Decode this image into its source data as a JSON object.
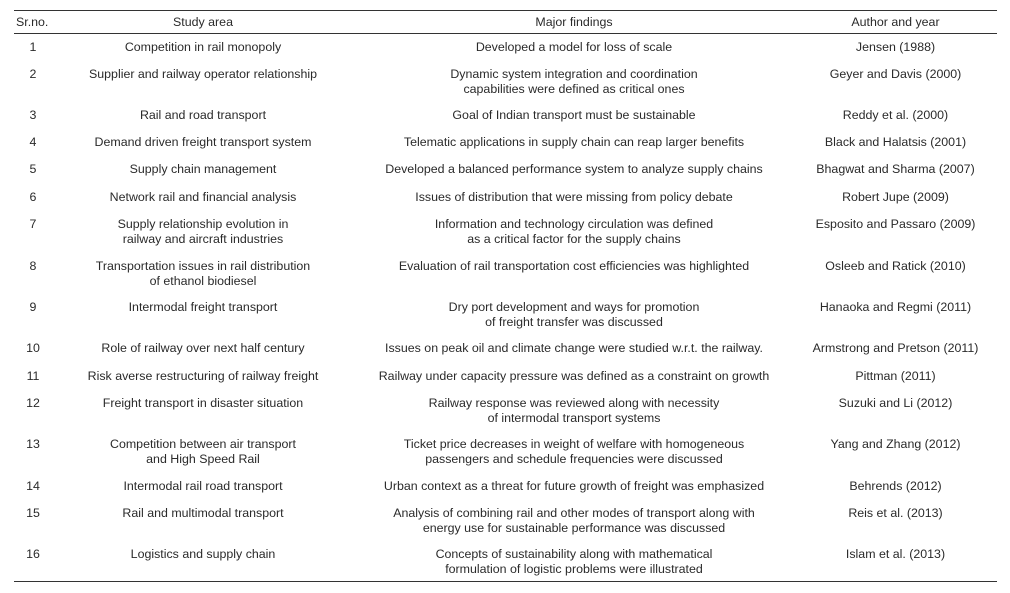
{
  "table": {
    "headers": {
      "sr": "Sr.no.",
      "area": "Study area",
      "findings": "Major findings",
      "author": "Author and year"
    },
    "rows": [
      {
        "sr": "1",
        "area": [
          "Competition in rail monopoly"
        ],
        "findings": [
          "Developed a model for loss of scale"
        ],
        "author": "Jensen (1988)"
      },
      {
        "sr": "2",
        "area": [
          "Supplier and railway operator relationship"
        ],
        "findings": [
          "Dynamic system integration and coordination",
          "capabilities were defined as critical ones"
        ],
        "author": "Geyer and Davis (2000)"
      },
      {
        "sr": "3",
        "area": [
          "Rail and road transport"
        ],
        "findings": [
          "Goal of Indian transport must be sustainable"
        ],
        "author": "Reddy et al. (2000)"
      },
      {
        "sr": "4",
        "area": [
          "Demand driven freight transport system"
        ],
        "findings": [
          "Telematic applications in supply chain can reap larger benefits"
        ],
        "author": "Black and Halatsis (2001)"
      },
      {
        "sr": "5",
        "area": [
          "Supply chain management"
        ],
        "findings": [
          "Developed a balanced performance system to analyze supply chains"
        ],
        "author": "Bhagwat and Sharma (2007)"
      },
      {
        "sr": "6",
        "area": [
          "Network rail and financial analysis"
        ],
        "findings": [
          "Issues of distribution that were missing from policy debate"
        ],
        "author": "Robert Jupe (2009)"
      },
      {
        "sr": "7",
        "area": [
          "Supply relationship evolution in",
          "railway and aircraft industries"
        ],
        "findings": [
          "Information and technology circulation was defined",
          "as a critical factor for the supply chains"
        ],
        "author": "Esposito and Passaro (2009)"
      },
      {
        "sr": "8",
        "area": [
          "Transportation issues in rail distribution",
          "of ethanol biodiesel"
        ],
        "findings": [
          "Evaluation of rail transportation cost efficiencies was highlighted"
        ],
        "author": "Osleeb and Ratick (2010)"
      },
      {
        "sr": "9",
        "area": [
          "Intermodal freight transport"
        ],
        "findings": [
          "Dry port development and ways for promotion",
          "of freight transfer was discussed"
        ],
        "author": "Hanaoka and Regmi (2011)"
      },
      {
        "sr": "10",
        "area": [
          "Role of railway over next half century"
        ],
        "findings": [
          "Issues on peak oil and climate change were studied w.r.t. the railway."
        ],
        "author": "Armstrong and Pretson (2011)"
      },
      {
        "sr": "11",
        "area": [
          "Risk averse restructuring of railway freight"
        ],
        "findings": [
          "Railway under capacity pressure was defined as a constraint on growth"
        ],
        "author": "Pittman (2011)"
      },
      {
        "sr": "12",
        "area": [
          "Freight transport in disaster situation"
        ],
        "findings": [
          "Railway response was reviewed along with necessity",
          "of intermodal transport systems"
        ],
        "author": "Suzuki and Li (2012)"
      },
      {
        "sr": "13",
        "area": [
          "Competition between air transport",
          "and High Speed Rail"
        ],
        "findings": [
          "Ticket price decreases in weight of welfare with homogeneous",
          "passengers and schedule frequencies were discussed"
        ],
        "author": "Yang and Zhang (2012)"
      },
      {
        "sr": "14",
        "area": [
          "Intermodal rail road transport"
        ],
        "findings": [
          "Urban context as a threat for future growth of freight was emphasized"
        ],
        "author": "Behrends (2012)"
      },
      {
        "sr": "15",
        "area": [
          "Rail and multimodal transport"
        ],
        "findings": [
          "Analysis of combining rail and other modes of transport along with",
          "energy use for sustainable performance was discussed"
        ],
        "author": "Reis et al. (2013)"
      },
      {
        "sr": "16",
        "area": [
          "Logistics and supply chain"
        ],
        "findings": [
          "Concepts of sustainability along with mathematical",
          "formulation of logistic problems were illustrated"
        ],
        "author": "Islam et al. (2013)"
      }
    ]
  }
}
